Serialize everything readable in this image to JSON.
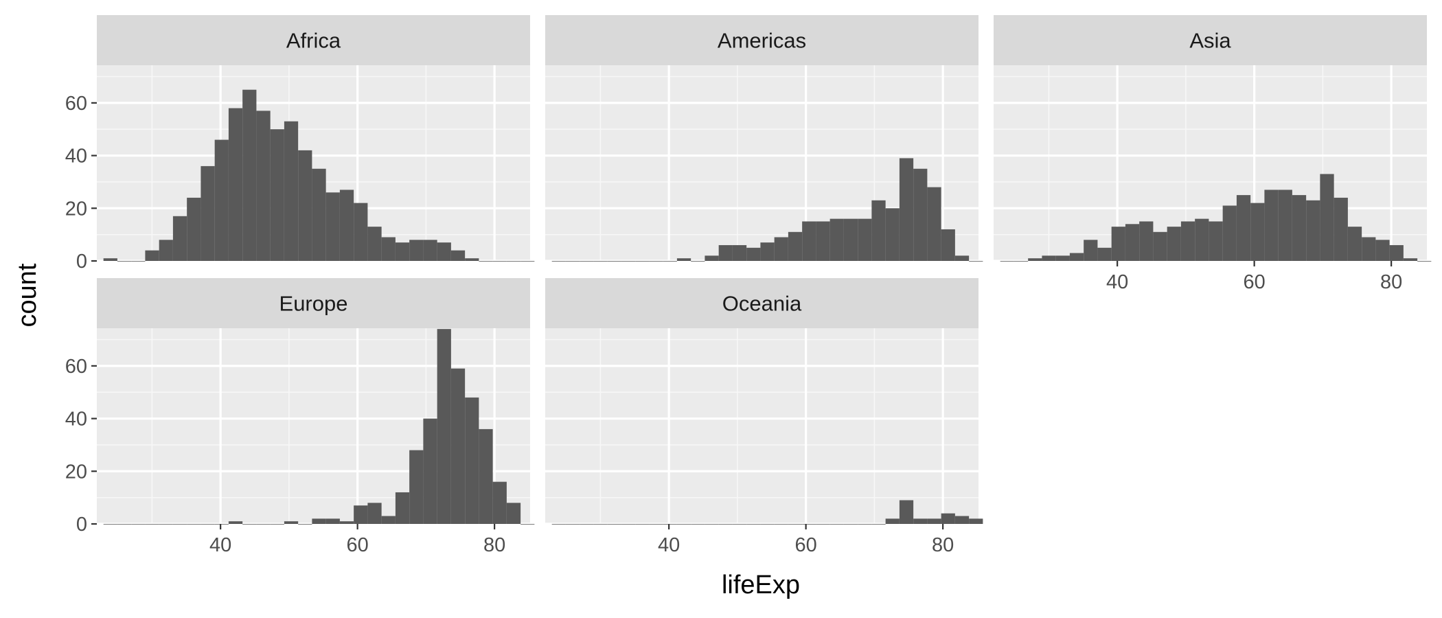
{
  "chart_data": {
    "type": "bar",
    "subtype": "faceted-histogram",
    "xlabel": "lifeExp",
    "ylabel": "count",
    "xlim": [
      21.94,
      85.2
    ],
    "ylim": [
      0,
      74.3
    ],
    "x_ticks": [
      40,
      60,
      80
    ],
    "y_ticks": [
      0,
      20,
      40,
      60
    ],
    "bin_width": 2.03,
    "bin_start": 22.91,
    "bar_color": "#595959",
    "panel_background": "#ebebeb",
    "strip_background": "#d9d9d9",
    "grid": true,
    "facets": [
      {
        "name": "Africa",
        "counts": [
          1,
          0,
          0,
          4,
          8,
          17,
          24,
          36,
          46,
          58,
          65,
          57,
          50,
          53,
          42,
          35,
          26,
          27,
          22,
          13,
          9,
          7,
          8,
          8,
          7,
          4,
          1,
          0,
          0,
          0,
          0
        ]
      },
      {
        "name": "Americas",
        "counts": [
          0,
          0,
          0,
          0,
          0,
          0,
          0,
          0,
          0,
          1,
          0,
          2,
          6,
          6,
          5,
          7,
          9,
          11,
          15,
          15,
          16,
          16,
          16,
          23,
          20,
          39,
          35,
          28,
          12,
          2,
          0
        ]
      },
      {
        "name": "Asia",
        "counts": [
          0,
          0,
          1,
          2,
          2,
          3,
          8,
          5,
          13,
          14,
          15,
          11,
          13,
          15,
          16,
          15,
          21,
          25,
          22,
          27,
          27,
          25,
          23,
          33,
          24,
          13,
          9,
          8,
          6,
          1,
          0
        ]
      },
      {
        "name": "Europe",
        "counts": [
          0,
          0,
          0,
          0,
          0,
          0,
          0,
          0,
          0,
          1,
          0,
          0,
          0,
          1,
          0,
          2,
          2,
          1,
          7,
          8,
          3,
          12,
          28,
          40,
          74,
          59,
          48,
          36,
          16,
          8,
          0
        ]
      },
      {
        "name": "Oceania",
        "counts": [
          0,
          0,
          0,
          0,
          0,
          0,
          0,
          0,
          0,
          0,
          0,
          0,
          0,
          0,
          0,
          0,
          0,
          0,
          0,
          0,
          0,
          0,
          0,
          0,
          2,
          9,
          2,
          2,
          4,
          3,
          2
        ]
      }
    ]
  }
}
